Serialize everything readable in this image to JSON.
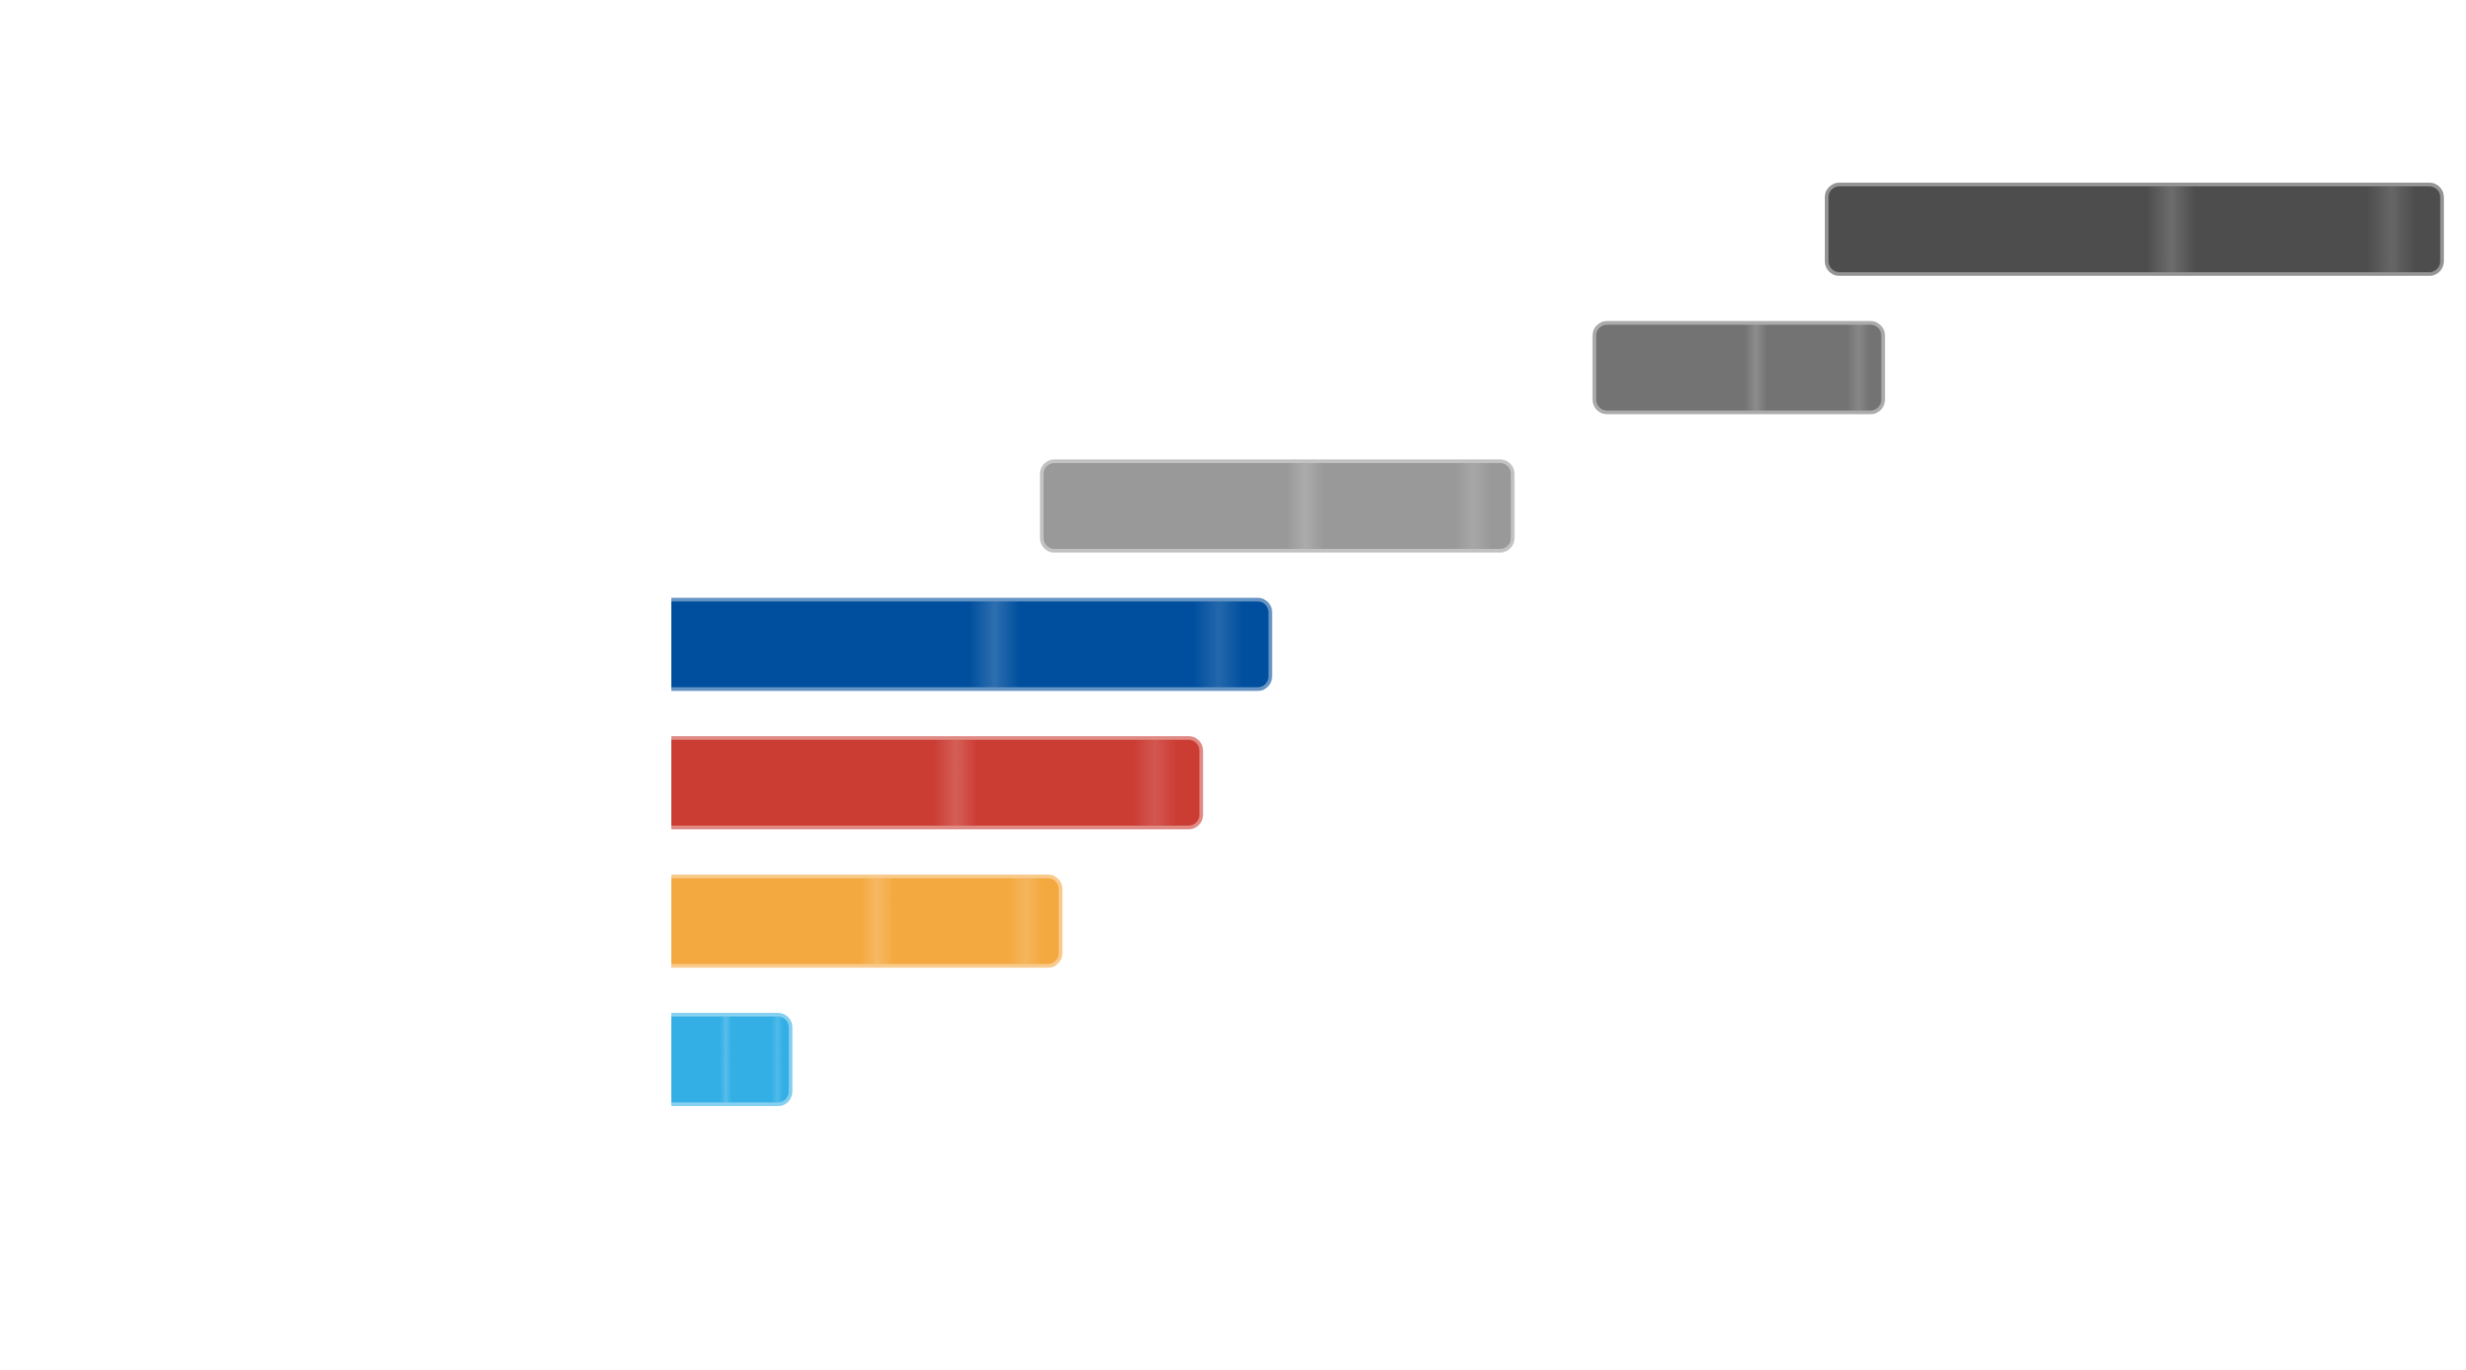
{
  "chart_data": {
    "type": "bar",
    "orientation": "horizontal",
    "layout": "waterfall",
    "xlim": [
      0,
      14
    ],
    "categories": [
      "",
      "",
      "",
      "",
      "",
      "",
      ""
    ],
    "bars": [
      {
        "start": 9.2,
        "end": 14.1,
        "color": "#4d4d4d"
      },
      {
        "start": 7.35,
        "end": 9.65,
        "color": "#737373"
      },
      {
        "start": 2.95,
        "end": 6.7,
        "color": "#999999"
      },
      {
        "start": 0,
        "end": 4.77,
        "color": "#004f9e"
      },
      {
        "start": 0,
        "end": 4.22,
        "color": "#cb3c33"
      },
      {
        "start": 0,
        "end": 3.1,
        "color": "#f4a940"
      },
      {
        "start": 0,
        "end": 0.95,
        "color": "#33afe6"
      }
    ],
    "grid": false,
    "legend": "none"
  }
}
